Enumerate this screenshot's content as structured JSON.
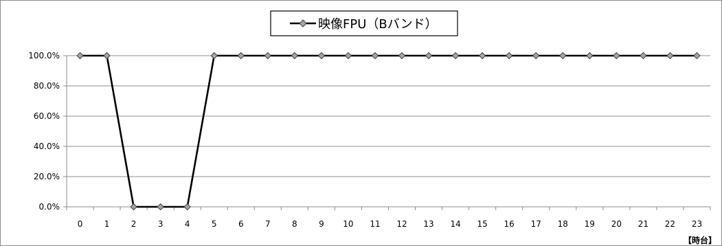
{
  "chart_data": {
    "type": "line",
    "legend": "映像FPU（Bバンド）",
    "legend_position": "top-center",
    "x_unit_label": "【時台】",
    "categories": [
      "0",
      "1",
      "2",
      "3",
      "4",
      "5",
      "6",
      "7",
      "8",
      "9",
      "10",
      "11",
      "12",
      "13",
      "14",
      "15",
      "16",
      "17",
      "18",
      "19",
      "20",
      "21",
      "22",
      "23"
    ],
    "series": [
      {
        "name": "映像FPU（Bバンド）",
        "values": [
          100,
          100,
          0,
          0,
          0,
          100,
          100,
          100,
          100,
          100,
          100,
          100,
          100,
          100,
          100,
          100,
          100,
          100,
          100,
          100,
          100,
          100,
          100,
          100
        ]
      }
    ],
    "y_ticks": [
      "0.0%",
      "20.0%",
      "40.0%",
      "60.0%",
      "80.0%",
      "100.0%"
    ],
    "ylim": [
      0,
      100
    ],
    "grid": true,
    "colors": {
      "line": "#000000",
      "marker_fill": "#a6a6a6",
      "marker_stroke": "#404040",
      "grid": "#8c8c8c"
    }
  }
}
